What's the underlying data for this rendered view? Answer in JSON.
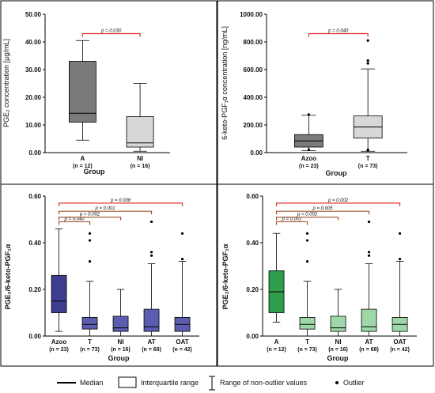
{
  "panels": [
    {
      "ylabel": "PGE₂ concentration [µg/mL]",
      "xlabel": "Group",
      "yticks": [
        "0.00",
        "10.00",
        "20.00",
        "30.00",
        "40.00",
        "50.00"
      ]
    },
    {
      "ylabel": "6-keto-PGF₁α concentration [ng/mL]",
      "xlabel": "Group",
      "yticks": [
        "0.00",
        "200.00",
        "400.00",
        "600.00",
        "800.00",
        "1000.00"
      ]
    },
    {
      "ylabel": "PGE₂/6-keto-PGF₁α",
      "xlabel": "Group",
      "yticks": [
        "0.00",
        "0.20",
        "0.40",
        "0.60"
      ]
    },
    {
      "ylabel": "PGE₂/6-keto-PGF₁α",
      "xlabel": "Group",
      "yticks": [
        "0.00",
        "0.20",
        "0.40",
        "0.60"
      ]
    }
  ],
  "legend": {
    "median": "Median",
    "iqr": "Interquartile range",
    "range": "Range of non-outlier values",
    "outlier": "Outlier"
  },
  "chart_data": [
    {
      "type": "box",
      "xlabel": "Group",
      "ylabel": "PGE₂ concentration [µg/mL]",
      "ylim": [
        0,
        50
      ],
      "colors": [
        "#7a7a7a",
        "#d8d8d8"
      ],
      "groups": [
        {
          "name": "A",
          "n": "(n = 12)",
          "min": 4.5,
          "q1": 11,
          "median": 14.2,
          "q3": 33,
          "max": 40.5,
          "outliers": []
        },
        {
          "name": "NI",
          "n": "(n = 16)",
          "min": 0.5,
          "q1": 2,
          "median": 3.5,
          "q3": 13,
          "max": 25,
          "outliers": []
        }
      ],
      "comparisons": [
        {
          "from": 0,
          "to": 1,
          "label": "p = 0.030",
          "y": 43
        }
      ]
    },
    {
      "type": "box",
      "xlabel": "Group",
      "ylabel": "6-keto-PGF₁α concentration [ng/mL]",
      "ylim": [
        0,
        1000
      ],
      "colors": [
        "#7a7a7a",
        "#d8d8d8"
      ],
      "groups": [
        {
          "name": "Azoo",
          "n": "(n = 23)",
          "min": 15,
          "q1": 40,
          "median": 85,
          "q3": 130,
          "max": 270,
          "outliers": [
            20,
            275
          ]
        },
        {
          "name": "T",
          "n": "(n = 73)",
          "min": 10,
          "q1": 105,
          "median": 185,
          "q3": 265,
          "max": 605,
          "outliers": [
            810,
            665,
            645,
            15,
            20
          ]
        }
      ],
      "comparisons": [
        {
          "from": 0,
          "to": 1,
          "label": "p = 0.040",
          "y": 860
        }
      ]
    },
    {
      "type": "box",
      "xlabel": "Group",
      "ylabel": "PGE₂/6-keto-PGF₁α",
      "ylim": [
        0,
        0.6
      ],
      "colors": [
        "#3d3d8f",
        "#5c5cb0"
      ],
      "groups": [
        {
          "name": "Azoo",
          "n": "(n = 23)",
          "min": 0.02,
          "q1": 0.1,
          "median": 0.15,
          "q3": 0.26,
          "max": 0.46,
          "outliers": []
        },
        {
          "name": "T",
          "n": "(n = 73)",
          "min": 0.0,
          "q1": 0.03,
          "median": 0.05,
          "q3": 0.08,
          "max": 0.235,
          "outliers": [
            0.44,
            0.41,
            0.32
          ]
        },
        {
          "name": "NI",
          "n": "(n = 16)",
          "min": 0.0,
          "q1": 0.02,
          "median": 0.035,
          "q3": 0.085,
          "max": 0.2,
          "outliers": []
        },
        {
          "name": "AT",
          "n": "(n = 68)",
          "min": 0.0,
          "q1": 0.02,
          "median": 0.04,
          "q3": 0.115,
          "max": 0.31,
          "outliers": [
            0.49,
            0.36,
            0.345
          ]
        },
        {
          "name": "OAT",
          "n": "(n = 42)",
          "min": 0.0,
          "q1": 0.02,
          "median": 0.05,
          "q3": 0.08,
          "max": 0.32,
          "outliers": [
            0.44,
            0.33
          ]
        }
      ],
      "comparisons": [
        {
          "from": 0,
          "to": 1,
          "label": "p = 0.040",
          "y": 0.49,
          "color": "#a0522d"
        },
        {
          "from": 0,
          "to": 2,
          "label": "p = 0.002",
          "y": 0.51,
          "color": "#a0522d"
        },
        {
          "from": 0,
          "to": 3,
          "label": "p = 0.001",
          "y": 0.535,
          "color": "#a0522d"
        },
        {
          "from": 0,
          "to": 4,
          "label": "p = 0.006",
          "y": 0.57,
          "color": "#e03030"
        }
      ]
    },
    {
      "type": "box",
      "xlabel": "Group",
      "ylabel": "PGE₂/6-keto-PGF₁α",
      "ylim": [
        0,
        0.6
      ],
      "colors": [
        "#2f9e4a",
        "#9fd8a8"
      ],
      "groups": [
        {
          "name": "A",
          "n": "(n = 12)",
          "min": 0.06,
          "q1": 0.1,
          "median": 0.19,
          "q3": 0.28,
          "max": 0.44,
          "outliers": []
        },
        {
          "name": "T",
          "n": "(n = 73)",
          "min": 0.0,
          "q1": 0.03,
          "median": 0.05,
          "q3": 0.08,
          "max": 0.235,
          "outliers": [
            0.44,
            0.41,
            0.32
          ]
        },
        {
          "name": "NI",
          "n": "(n = 16)",
          "min": 0.0,
          "q1": 0.02,
          "median": 0.035,
          "q3": 0.085,
          "max": 0.2,
          "outliers": []
        },
        {
          "name": "AT",
          "n": "(n = 68)",
          "min": 0.0,
          "q1": 0.02,
          "median": 0.04,
          "q3": 0.115,
          "max": 0.31,
          "outliers": [
            0.49,
            0.36,
            0.345
          ]
        },
        {
          "name": "OAT",
          "n": "(n = 42)",
          "min": 0.0,
          "q1": 0.02,
          "median": 0.05,
          "q3": 0.08,
          "max": 0.32,
          "outliers": [
            0.44,
            0.33
          ]
        }
      ],
      "comparisons": [
        {
          "from": 0,
          "to": 1,
          "label": "p = 0.001",
          "y": 0.49,
          "color": "#a0522d"
        },
        {
          "from": 0,
          "to": 2,
          "label": "p = 0.002",
          "y": 0.51,
          "color": "#a0522d"
        },
        {
          "from": 0,
          "to": 3,
          "label": "p = 0.005",
          "y": 0.535,
          "color": "#a0522d"
        },
        {
          "from": 0,
          "to": 4,
          "label": "p = 0.002",
          "y": 0.57,
          "color": "#e03030"
        }
      ]
    }
  ]
}
